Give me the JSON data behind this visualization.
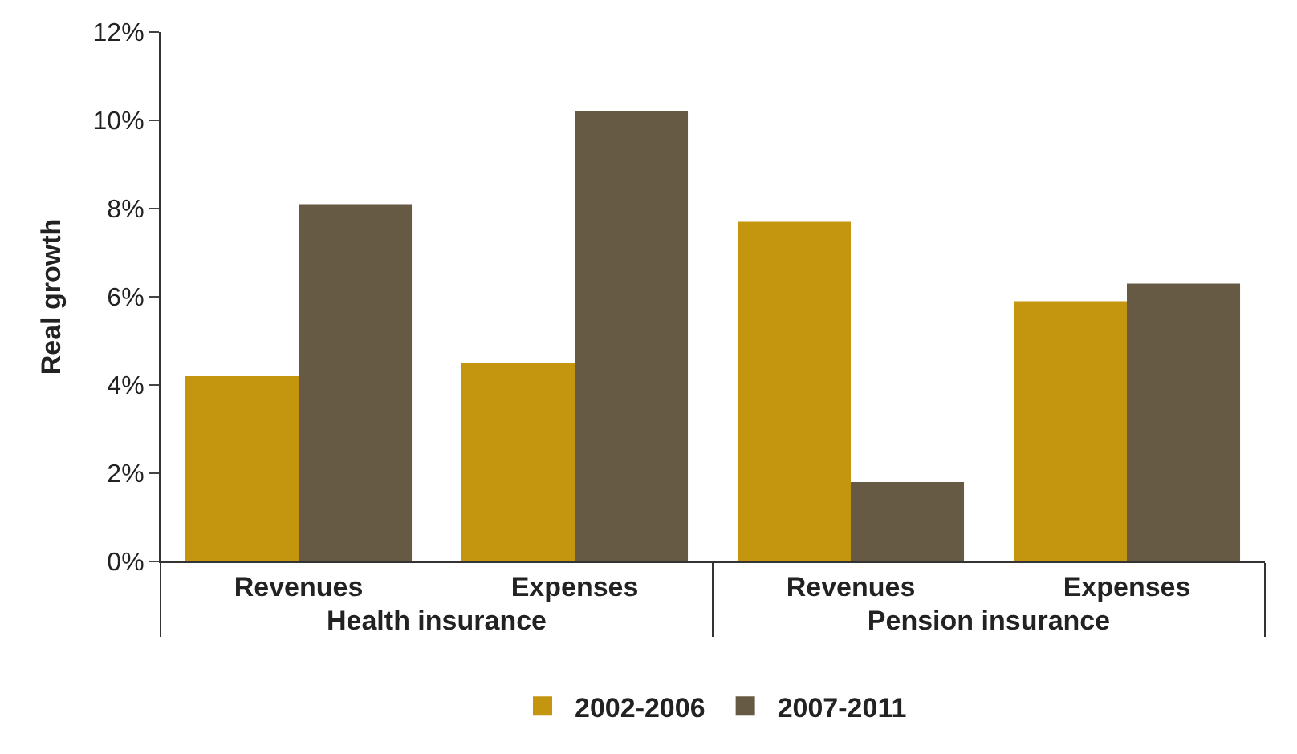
{
  "chart_data": {
    "type": "bar",
    "ylabel": "Real growth",
    "categories": [
      "Revenues",
      "Expenses",
      "Revenues",
      "Expenses"
    ],
    "annotations": [
      "Health insurance",
      "Pension insurance"
    ],
    "series": [
      {
        "name": "2002-2006",
        "color": "#c4960f",
        "values": [
          4.2,
          4.5,
          7.7,
          5.9
        ]
      },
      {
        "name": "2007-2011",
        "color": "#665a45",
        "values": [
          8.1,
          10.2,
          1.8,
          6.3
        ]
      }
    ],
    "ylim": [
      0,
      12
    ],
    "yticks": [
      {
        "value": 0,
        "label": "0%"
      },
      {
        "value": 2,
        "label": "2%"
      },
      {
        "value": 4,
        "label": "4%"
      },
      {
        "value": 6,
        "label": "6%"
      },
      {
        "value": 8,
        "label": "8%"
      },
      {
        "value": 10,
        "label": "10%"
      },
      {
        "value": 12,
        "label": "12%"
      }
    ],
    "legend": "bottom"
  }
}
